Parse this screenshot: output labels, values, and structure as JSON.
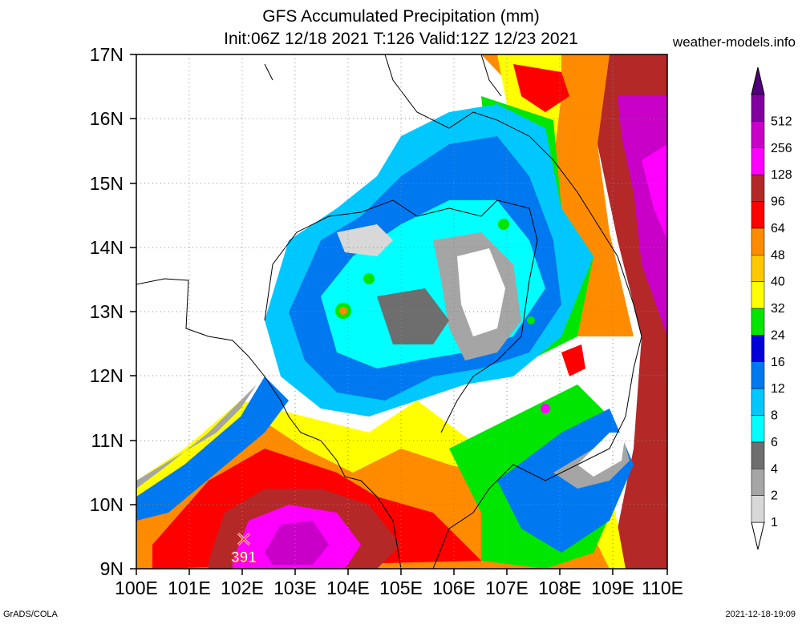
{
  "header": {
    "title": "GFS Accumulated Precipitation (mm)",
    "subtitle": "Init:06Z 12/18 2021 T:126 Valid:12Z 12/23 2021",
    "source": "weather-models.info"
  },
  "map": {
    "region": "Cambodia, southern Laos, southern Vietnam, eastern Thailand, Gulf of Thailand",
    "lat_labels": [
      "9N",
      "10N",
      "11N",
      "12N",
      "13N",
      "14N",
      "15N",
      "16N",
      "17N"
    ],
    "lon_labels": [
      "100E",
      "101E",
      "102E",
      "103E",
      "104E",
      "105E",
      "106E",
      "107E",
      "108E",
      "109E",
      "110E"
    ],
    "lat_range": [
      9,
      17
    ],
    "lon_range": [
      100,
      110
    ],
    "grid": "dotted",
    "marker": {
      "label": "391",
      "icon": "x-marker-icon",
      "lon": 102.2,
      "lat": 9.3
    }
  },
  "legend": {
    "placement": "right",
    "levels": [
      {
        "label": "1",
        "color": "#d8d8d8"
      },
      {
        "label": "2",
        "color": "#a5a5a5"
      },
      {
        "label": "4",
        "color": "#6e6e6e"
      },
      {
        "label": "6",
        "color": "#00ffff"
      },
      {
        "label": "8",
        "color": "#00c8ff"
      },
      {
        "label": "12",
        "color": "#0078f0"
      },
      {
        "label": "16",
        "color": "#0000d8"
      },
      {
        "label": "24",
        "color": "#00e600"
      },
      {
        "label": "32",
        "color": "#ffff00"
      },
      {
        "label": "40",
        "color": "#ffc800"
      },
      {
        "label": "48",
        "color": "#ff8c00"
      },
      {
        "label": "64",
        "color": "#ff0000"
      },
      {
        "label": "96",
        "color": "#b42828"
      },
      {
        "label": "128",
        "color": "#ff00ff"
      },
      {
        "label": "256",
        "color": "#c800c8"
      },
      {
        "label": "512",
        "color": "#8200a0"
      }
    ],
    "top_arrow_color": "#500078",
    "bottom_arrow_color": "#ffffff"
  },
  "footer": {
    "left": "GrADS/COLA",
    "right": "2021-12-18-19:09"
  }
}
